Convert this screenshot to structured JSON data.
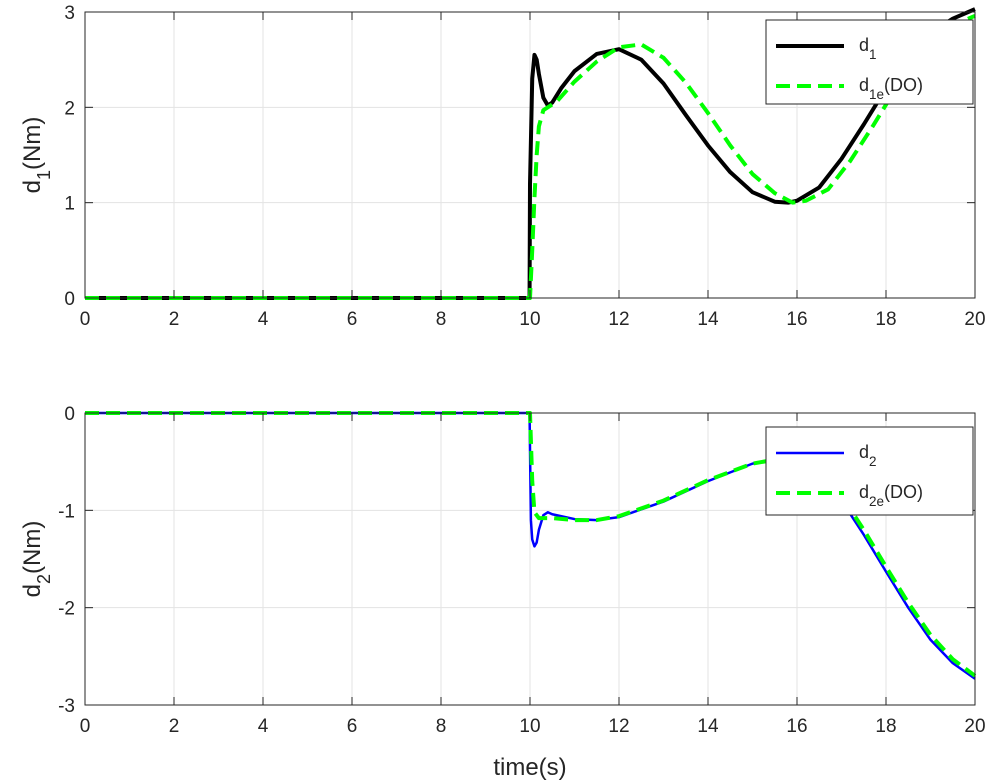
{
  "chart_data": [
    {
      "type": "line",
      "xlabel": "",
      "ylabel": "d",
      "ylabel_sub": "1",
      "ylabel_tail": "(Nm)",
      "xlim": [
        0,
        20
      ],
      "ylim": [
        0,
        3
      ],
      "xticks": [
        "0",
        "2",
        "4",
        "6",
        "8",
        "10",
        "12",
        "14",
        "16",
        "18",
        "20"
      ],
      "yticks": [
        "0",
        "1",
        "2",
        "3"
      ],
      "grid": true,
      "legend_position": "top-right",
      "series": [
        {
          "name": "d",
          "name_sub": "1",
          "name_tail": "",
          "color": "#000000",
          "style": "solid",
          "x": [
            0,
            9.99,
            10.0,
            10.05,
            10.1,
            10.15,
            10.2,
            10.3,
            10.4,
            10.5,
            10.7,
            11.0,
            11.5,
            12.0,
            12.5,
            13.0,
            13.5,
            14.0,
            14.5,
            15.0,
            15.5,
            15.8,
            16.0,
            16.5,
            17.0,
            17.5,
            18.0,
            18.5,
            19.0,
            19.5,
            20.0
          ],
          "y": [
            0,
            0,
            1.2,
            2.3,
            2.55,
            2.5,
            2.35,
            2.1,
            2.02,
            2.05,
            2.2,
            2.38,
            2.56,
            2.61,
            2.5,
            2.25,
            1.92,
            1.6,
            1.32,
            1.11,
            1.01,
            1.0,
            1.02,
            1.16,
            1.46,
            1.82,
            2.2,
            2.52,
            2.78,
            2.93,
            3.03
          ]
        },
        {
          "name": "d",
          "name_sub": "1e",
          "name_tail": "(DO)",
          "color": "#00ff00",
          "style": "dashed",
          "x": [
            0,
            10.0,
            10.05,
            10.1,
            10.15,
            10.2,
            10.3,
            10.4,
            10.6,
            11.0,
            11.5,
            12.0,
            12.5,
            13.0,
            13.5,
            14.0,
            14.5,
            15.0,
            15.5,
            15.9,
            16.2,
            16.7,
            17.2,
            17.7,
            18.2,
            18.7,
            19.2,
            19.7,
            20.0
          ],
          "y": [
            0,
            0,
            0.5,
            1.05,
            1.5,
            1.8,
            1.97,
            2.0,
            2.06,
            2.27,
            2.48,
            2.63,
            2.66,
            2.52,
            2.26,
            1.94,
            1.6,
            1.3,
            1.1,
            1.0,
            1.02,
            1.14,
            1.44,
            1.8,
            2.18,
            2.5,
            2.75,
            2.9,
            2.96
          ]
        }
      ]
    },
    {
      "type": "line",
      "xlabel": "time(s)",
      "ylabel": "d",
      "ylabel_sub": "2",
      "ylabel_tail": "(Nm)",
      "xlim": [
        0,
        20
      ],
      "ylim": [
        -3,
        0
      ],
      "xticks": [
        "0",
        "2",
        "4",
        "6",
        "8",
        "10",
        "12",
        "14",
        "16",
        "18",
        "20"
      ],
      "yticks": [
        "-3",
        "-2",
        "-1",
        "0"
      ],
      "grid": true,
      "legend_position": "top-right",
      "series": [
        {
          "name": "d",
          "name_sub": "2",
          "name_tail": "",
          "color": "#0000ff",
          "style": "solid",
          "x": [
            0,
            9.99,
            10.02,
            10.05,
            10.1,
            10.15,
            10.2,
            10.3,
            10.4,
            10.5,
            11.0,
            11.5,
            12.0,
            13.0,
            14.0,
            15.0,
            15.5,
            16.0,
            16.5,
            17.0,
            17.5,
            18.0,
            18.5,
            19.0,
            19.5,
            20.0
          ],
          "y": [
            0,
            0,
            -1.1,
            -1.3,
            -1.37,
            -1.33,
            -1.2,
            -1.05,
            -1.02,
            -1.04,
            -1.09,
            -1.1,
            -1.07,
            -0.91,
            -0.7,
            -0.52,
            -0.48,
            -0.52,
            -0.65,
            -0.9,
            -1.25,
            -1.63,
            -2.0,
            -2.33,
            -2.57,
            -2.73
          ]
        },
        {
          "name": "d",
          "name_sub": "2e",
          "name_tail": "(DO)",
          "color": "#00ff00",
          "style": "dashed",
          "x": [
            0,
            10.0,
            10.05,
            10.1,
            10.2,
            10.3,
            10.5,
            11.0,
            11.5,
            12.0,
            13.0,
            14.0,
            15.0,
            15.5,
            16.0,
            16.5,
            17.0,
            17.5,
            18.0,
            18.5,
            19.0,
            19.5,
            20.0
          ],
          "y": [
            0,
            0,
            -0.7,
            -1.02,
            -1.08,
            -1.08,
            -1.08,
            -1.1,
            -1.1,
            -1.06,
            -0.9,
            -0.69,
            -0.52,
            -0.48,
            -0.5,
            -0.6,
            -0.85,
            -1.2,
            -1.58,
            -1.95,
            -2.28,
            -2.53,
            -2.7
          ]
        }
      ]
    }
  ]
}
